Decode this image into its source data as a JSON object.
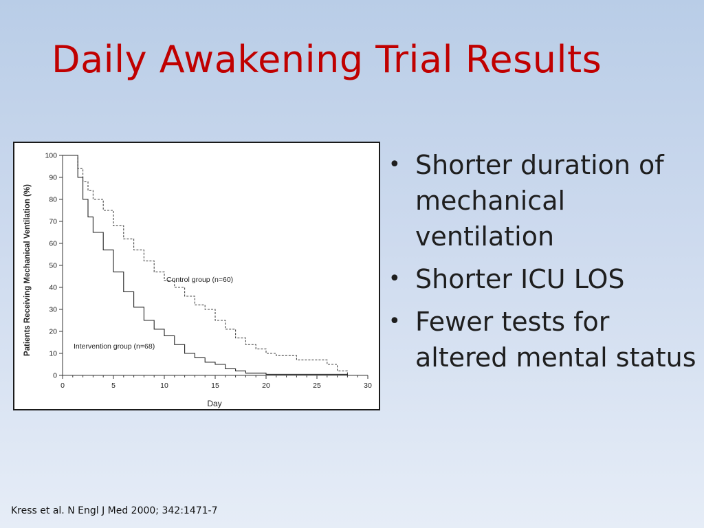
{
  "slide": {
    "title": "Daily Awakening Trial Results",
    "bullets": [
      "Shorter duration of mechanical ventilation",
      "Shorter ICU LOS",
      "Fewer tests for altered mental status"
    ],
    "citation": "Kress et al. N Engl J Med 2000; 342:1471-7"
  },
  "chart_data": {
    "type": "line",
    "xlabel": "Day",
    "ylabel": "Patients Receiving Mechanical Ventilation (%)",
    "xlim": [
      0,
      30
    ],
    "ylim": [
      0,
      100
    ],
    "xticks": [
      0,
      5,
      10,
      15,
      20,
      25,
      30
    ],
    "yticks": [
      0,
      10,
      20,
      30,
      40,
      50,
      60,
      70,
      80,
      90,
      100
    ],
    "grid": false,
    "series": [
      {
        "name": "Control group (n=60)",
        "style": "dashed",
        "x": [
          0,
          1,
          1.5,
          2,
          2.5,
          3,
          4,
          5,
          6,
          7,
          8,
          9,
          10,
          11,
          12,
          13,
          14,
          15,
          16,
          17,
          18,
          19,
          20,
          21,
          22,
          23,
          25,
          26,
          27,
          28
        ],
        "y": [
          100,
          100,
          94,
          88,
          84,
          80,
          75,
          68,
          62,
          57,
          52,
          47,
          43,
          40,
          36,
          32,
          30,
          25,
          21,
          17,
          14,
          12,
          10,
          9,
          9,
          7,
          7,
          5,
          2,
          0
        ]
      },
      {
        "name": "Intervention group (n=68)",
        "style": "solid",
        "x": [
          0,
          1,
          1.5,
          2,
          2.5,
          3,
          4,
          5,
          6,
          7,
          8,
          9,
          10,
          11,
          12,
          13,
          14,
          15,
          16,
          17,
          18,
          19,
          20,
          25,
          28
        ],
        "y": [
          100,
          100,
          90,
          80,
          72,
          65,
          57,
          47,
          38,
          31,
          25,
          21,
          18,
          14,
          10,
          8,
          6,
          5,
          3,
          2,
          1,
          1,
          0.5,
          0.5,
          0
        ]
      }
    ]
  }
}
